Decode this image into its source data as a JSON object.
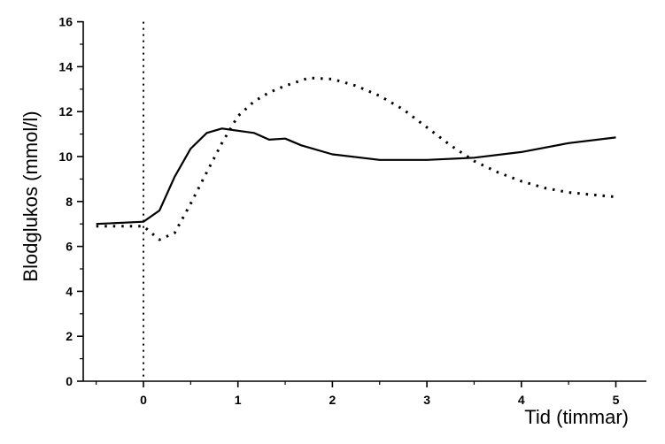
{
  "chart_data": {
    "type": "line",
    "title": "",
    "xlabel": "Tid (timmar)",
    "ylabel": "Blodglukos (mmol/l)",
    "xlim": [
      -0.65,
      5.3
    ],
    "ylim": [
      0,
      16
    ],
    "x_ticks": [
      0,
      1,
      2,
      3,
      4,
      5
    ],
    "y_ticks": [
      0,
      2,
      4,
      6,
      8,
      10,
      12,
      14,
      16
    ],
    "grid": false,
    "legend": "none",
    "vertical_reference_x": 0,
    "series": [
      {
        "style": "solid",
        "color": "#000000",
        "x": [
          -0.5,
          0,
          0.17,
          0.33,
          0.5,
          0.67,
          0.83,
          1.0,
          1.17,
          1.33,
          1.5,
          1.67,
          2.0,
          2.5,
          3.0,
          3.5,
          4.0,
          4.5,
          5.0
        ],
        "y": [
          7.0,
          7.1,
          7.6,
          9.1,
          10.35,
          11.05,
          11.25,
          11.15,
          11.05,
          10.75,
          10.8,
          10.5,
          10.1,
          9.85,
          9.85,
          9.95,
          10.2,
          10.6,
          10.85
        ]
      },
      {
        "style": "dotted",
        "color": "#000000",
        "x": [
          -0.5,
          0,
          0.17,
          0.33,
          0.5,
          0.67,
          0.83,
          1.0,
          1.17,
          1.33,
          1.5,
          1.75,
          2.0,
          2.25,
          2.5,
          2.75,
          3.0,
          3.25,
          3.5,
          3.75,
          4.0,
          4.25,
          4.5,
          5.0
        ],
        "y": [
          6.9,
          6.9,
          6.3,
          6.6,
          7.9,
          9.3,
          10.6,
          11.8,
          12.45,
          12.85,
          13.15,
          13.5,
          13.45,
          13.15,
          12.7,
          12.1,
          11.3,
          10.5,
          9.8,
          9.3,
          8.9,
          8.6,
          8.4,
          8.2
        ]
      }
    ]
  }
}
